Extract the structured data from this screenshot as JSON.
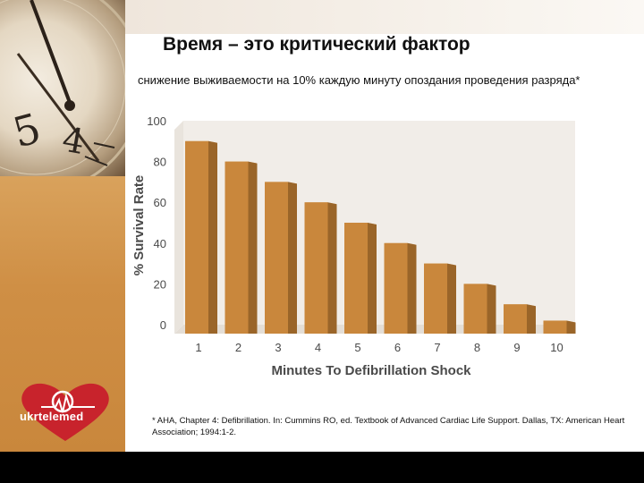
{
  "slide": {
    "title": "Время – это критический фактор",
    "subtitle": "снижение выживаемости на 10% каждую минуту опоздания проведения разряда*",
    "footnote": "* AHA, Chapter 4: Defibrillation. In: Cummins RO, ed. Textbook of Advanced Cardiac Life Support. Dallas, TX: American Heart Association; 1994:1-2.",
    "logo_text": "ukrtelemed"
  },
  "colors": {
    "bar_front": "#c9873c",
    "bar_top": "#e2b57a",
    "bar_side": "#9a6529",
    "wall": "#f1ede8",
    "axis_text": "#4a4a4a",
    "logo_red": "#c8232c"
  },
  "chart_data": {
    "type": "bar",
    "categories": [
      "1",
      "2",
      "3",
      "4",
      "5",
      "6",
      "7",
      "8",
      "9",
      "10"
    ],
    "values": [
      90,
      80,
      70,
      60,
      50,
      40,
      30,
      20,
      10,
      2
    ],
    "yticks": [
      0,
      20,
      40,
      60,
      80,
      100
    ],
    "ylim": [
      0,
      100
    ],
    "xlabel": "Minutes To Defibrillation Shock",
    "ylabel": "% Survival Rate",
    "title": "",
    "grid": false,
    "legend": "none"
  }
}
